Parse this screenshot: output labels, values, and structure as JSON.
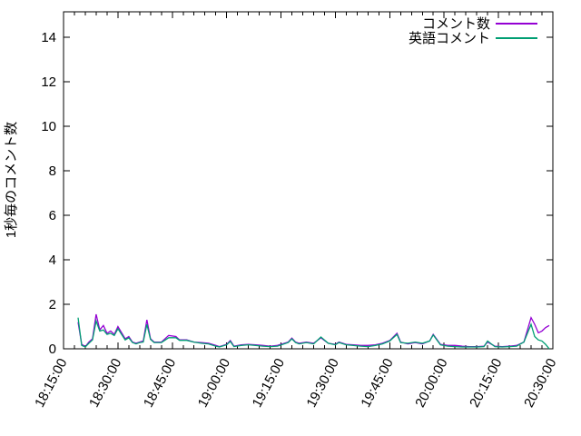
{
  "chart_data": {
    "type": "line",
    "title": "",
    "y_axis_title": "1秒毎のコメント数",
    "x_axis_title": "",
    "background_color": "#ffffff",
    "axis_color": "#000000",
    "grid": false,
    "legend_position": "top-right-inside",
    "ylim": [
      0,
      15.1
    ],
    "y_ticks": [
      0,
      2,
      4,
      6,
      8,
      10,
      12,
      14
    ],
    "x_start": "18:15:00",
    "x_end": "20:30:00",
    "x_major_tick_minutes": 15,
    "x_minor_tick_minutes": 3,
    "x_tick_labels": [
      "18:15:00",
      "18:30:00",
      "18:45:00",
      "19:00:00",
      "19:15:00",
      "19:30:00",
      "19:45:00",
      "20:00:00",
      "20:15:00",
      "20:30:00"
    ],
    "series": [
      {
        "name": "コメント数",
        "color": "#9400d3",
        "points": [
          [
            "18:19",
            1.2
          ],
          [
            "18:20",
            0.2
          ],
          [
            "18:21",
            0.1
          ],
          [
            "18:22",
            0.3
          ],
          [
            "18:23",
            0.45
          ],
          [
            "18:24",
            1.55
          ],
          [
            "18:25",
            0.85
          ],
          [
            "18:26",
            1.05
          ],
          [
            "18:27",
            0.7
          ],
          [
            "18:28",
            0.8
          ],
          [
            "18:29",
            0.65
          ],
          [
            "18:30",
            1.0
          ],
          [
            "18:32",
            0.45
          ],
          [
            "18:33",
            0.55
          ],
          [
            "18:34",
            0.3
          ],
          [
            "18:35",
            0.25
          ],
          [
            "18:36",
            0.3
          ],
          [
            "18:37",
            0.35
          ],
          [
            "18:38",
            1.3
          ],
          [
            "18:39",
            0.45
          ],
          [
            "18:40",
            0.3
          ],
          [
            "18:42",
            0.3
          ],
          [
            "18:44",
            0.6
          ],
          [
            "18:46",
            0.55
          ],
          [
            "18:47",
            0.4
          ],
          [
            "18:49",
            0.4
          ],
          [
            "18:51",
            0.3
          ],
          [
            "18:53",
            0.28
          ],
          [
            "18:55",
            0.25
          ],
          [
            "18:57",
            0.15
          ],
          [
            "18:58",
            0.1
          ],
          [
            "19:00",
            0.2
          ],
          [
            "19:01",
            0.37
          ],
          [
            "19:02",
            0.12
          ],
          [
            "19:04",
            0.18
          ],
          [
            "19:06",
            0.2
          ],
          [
            "19:08",
            0.18
          ],
          [
            "19:10",
            0.15
          ],
          [
            "19:12",
            0.12
          ],
          [
            "19:14",
            0.15
          ],
          [
            "19:17",
            0.3
          ],
          [
            "19:18",
            0.48
          ],
          [
            "19:19",
            0.3
          ],
          [
            "19:20",
            0.25
          ],
          [
            "19:22",
            0.3
          ],
          [
            "19:24",
            0.25
          ],
          [
            "19:26",
            0.5
          ],
          [
            "19:28",
            0.25
          ],
          [
            "19:30",
            0.2
          ],
          [
            "19:31",
            0.3
          ],
          [
            "19:33",
            0.2
          ],
          [
            "19:35",
            0.18
          ],
          [
            "19:37",
            0.15
          ],
          [
            "19:39",
            0.15
          ],
          [
            "19:41",
            0.18
          ],
          [
            "19:43",
            0.25
          ],
          [
            "19:45",
            0.37
          ],
          [
            "19:47",
            0.7
          ],
          [
            "19:48",
            0.3
          ],
          [
            "19:50",
            0.22
          ],
          [
            "19:52",
            0.28
          ],
          [
            "19:54",
            0.22
          ],
          [
            "19:56",
            0.35
          ],
          [
            "19:57",
            0.65
          ],
          [
            "19:59",
            0.2
          ],
          [
            "20:01",
            0.15
          ],
          [
            "20:03",
            0.15
          ],
          [
            "20:05",
            0.12
          ],
          [
            "20:07",
            0.1
          ],
          [
            "20:09",
            0.1
          ],
          [
            "20:11",
            0.12
          ],
          [
            "20:12",
            0.3
          ],
          [
            "20:14",
            0.12
          ],
          [
            "20:16",
            0.1
          ],
          [
            "20:18",
            0.12
          ],
          [
            "20:20",
            0.15
          ],
          [
            "20:22",
            0.3
          ],
          [
            "20:24",
            1.4
          ],
          [
            "20:25",
            1.1
          ],
          [
            "20:26",
            0.72
          ],
          [
            "20:27",
            0.8
          ],
          [
            "20:28",
            0.95
          ],
          [
            "20:29",
            1.05
          ]
        ]
      },
      {
        "name": "英語コメント",
        "color": "#009e73",
        "points": [
          [
            "18:19",
            1.4
          ],
          [
            "18:20",
            0.15
          ],
          [
            "18:21",
            0.08
          ],
          [
            "18:22",
            0.25
          ],
          [
            "18:23",
            0.4
          ],
          [
            "18:24",
            1.25
          ],
          [
            "18:25",
            0.8
          ],
          [
            "18:26",
            0.85
          ],
          [
            "18:27",
            0.65
          ],
          [
            "18:28",
            0.7
          ],
          [
            "18:29",
            0.6
          ],
          [
            "18:30",
            0.9
          ],
          [
            "18:32",
            0.4
          ],
          [
            "18:33",
            0.5
          ],
          [
            "18:34",
            0.28
          ],
          [
            "18:35",
            0.22
          ],
          [
            "18:36",
            0.28
          ],
          [
            "18:37",
            0.3
          ],
          [
            "18:38",
            1.1
          ],
          [
            "18:39",
            0.42
          ],
          [
            "18:40",
            0.28
          ],
          [
            "18:42",
            0.28
          ],
          [
            "18:44",
            0.5
          ],
          [
            "18:46",
            0.5
          ],
          [
            "18:47",
            0.38
          ],
          [
            "18:49",
            0.38
          ],
          [
            "18:51",
            0.3
          ],
          [
            "18:53",
            0.25
          ],
          [
            "18:55",
            0.22
          ],
          [
            "18:57",
            0.12
          ],
          [
            "18:58",
            0.08
          ],
          [
            "19:00",
            0.18
          ],
          [
            "19:01",
            0.33
          ],
          [
            "19:02",
            0.1
          ],
          [
            "19:04",
            0.15
          ],
          [
            "19:06",
            0.18
          ],
          [
            "19:08",
            0.15
          ],
          [
            "19:10",
            0.12
          ],
          [
            "19:12",
            0.1
          ],
          [
            "19:14",
            0.12
          ],
          [
            "19:17",
            0.28
          ],
          [
            "19:18",
            0.45
          ],
          [
            "19:19",
            0.28
          ],
          [
            "19:20",
            0.22
          ],
          [
            "19:22",
            0.28
          ],
          [
            "19:24",
            0.22
          ],
          [
            "19:26",
            0.53
          ],
          [
            "19:28",
            0.25
          ],
          [
            "19:30",
            0.18
          ],
          [
            "19:31",
            0.28
          ],
          [
            "19:33",
            0.18
          ],
          [
            "19:35",
            0.15
          ],
          [
            "19:37",
            0.12
          ],
          [
            "19:39",
            0.1
          ],
          [
            "19:41",
            0.15
          ],
          [
            "19:43",
            0.22
          ],
          [
            "19:45",
            0.35
          ],
          [
            "19:47",
            0.65
          ],
          [
            "19:48",
            0.28
          ],
          [
            "19:50",
            0.25
          ],
          [
            "19:52",
            0.3
          ],
          [
            "19:54",
            0.25
          ],
          [
            "19:56",
            0.35
          ],
          [
            "19:57",
            0.62
          ],
          [
            "19:59",
            0.18
          ],
          [
            "20:01",
            0.12
          ],
          [
            "20:03",
            0.1
          ],
          [
            "20:05",
            0.08
          ],
          [
            "20:07",
            0.08
          ],
          [
            "20:09",
            0.08
          ],
          [
            "20:11",
            0.1
          ],
          [
            "20:12",
            0.35
          ],
          [
            "20:14",
            0.1
          ],
          [
            "20:16",
            0.08
          ],
          [
            "20:18",
            0.1
          ],
          [
            "20:20",
            0.12
          ],
          [
            "20:22",
            0.3
          ],
          [
            "20:24",
            1.1
          ],
          [
            "20:25",
            0.55
          ],
          [
            "20:26",
            0.4
          ],
          [
            "20:27",
            0.35
          ],
          [
            "20:28",
            0.2
          ],
          [
            "20:29",
            0.0
          ]
        ]
      }
    ]
  }
}
